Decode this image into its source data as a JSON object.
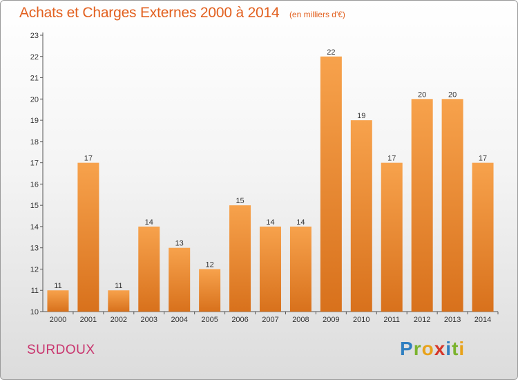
{
  "header": {
    "title": "Achats et Charges Externes 2000 à 2014",
    "subtitle": "(en milliers d'€)"
  },
  "footer": {
    "commune": "SURDOUX",
    "logo": {
      "letters": [
        "P",
        "r",
        "o",
        "x",
        "i",
        "t",
        "i"
      ],
      "colors": [
        "#2f7fc1",
        "#7bb32e",
        "#e8a21a",
        "#d6372a",
        "#2f7fc1",
        "#7bb32e",
        "#e8a21a"
      ]
    }
  },
  "chart_data": {
    "type": "bar",
    "categories": [
      "2000",
      "2001",
      "2002",
      "2003",
      "2004",
      "2005",
      "2006",
      "2007",
      "2008",
      "2009",
      "2010",
      "2011",
      "2012",
      "2013",
      "2014"
    ],
    "values": [
      11,
      17,
      11,
      14,
      13,
      12,
      15,
      14,
      14,
      22,
      19,
      17,
      20,
      20,
      17
    ],
    "data_labels": [
      "11",
      "17",
      "11",
      "14",
      "13",
      "12",
      "15",
      "14",
      "14",
      "22",
      "19",
      "17",
      "20",
      "20",
      "17"
    ],
    "title": "Achats et Charges Externes 2000 à 2014",
    "ylim": [
      10,
      23
    ],
    "yticks": [
      "10",
      "11",
      "12",
      "13",
      "14",
      "15",
      "16",
      "17",
      "18",
      "19",
      "20",
      "21",
      "22",
      "23"
    ],
    "grid": false,
    "colors": {
      "bar_light": "#f7a24c",
      "bar_dark": "#d8711c"
    }
  }
}
